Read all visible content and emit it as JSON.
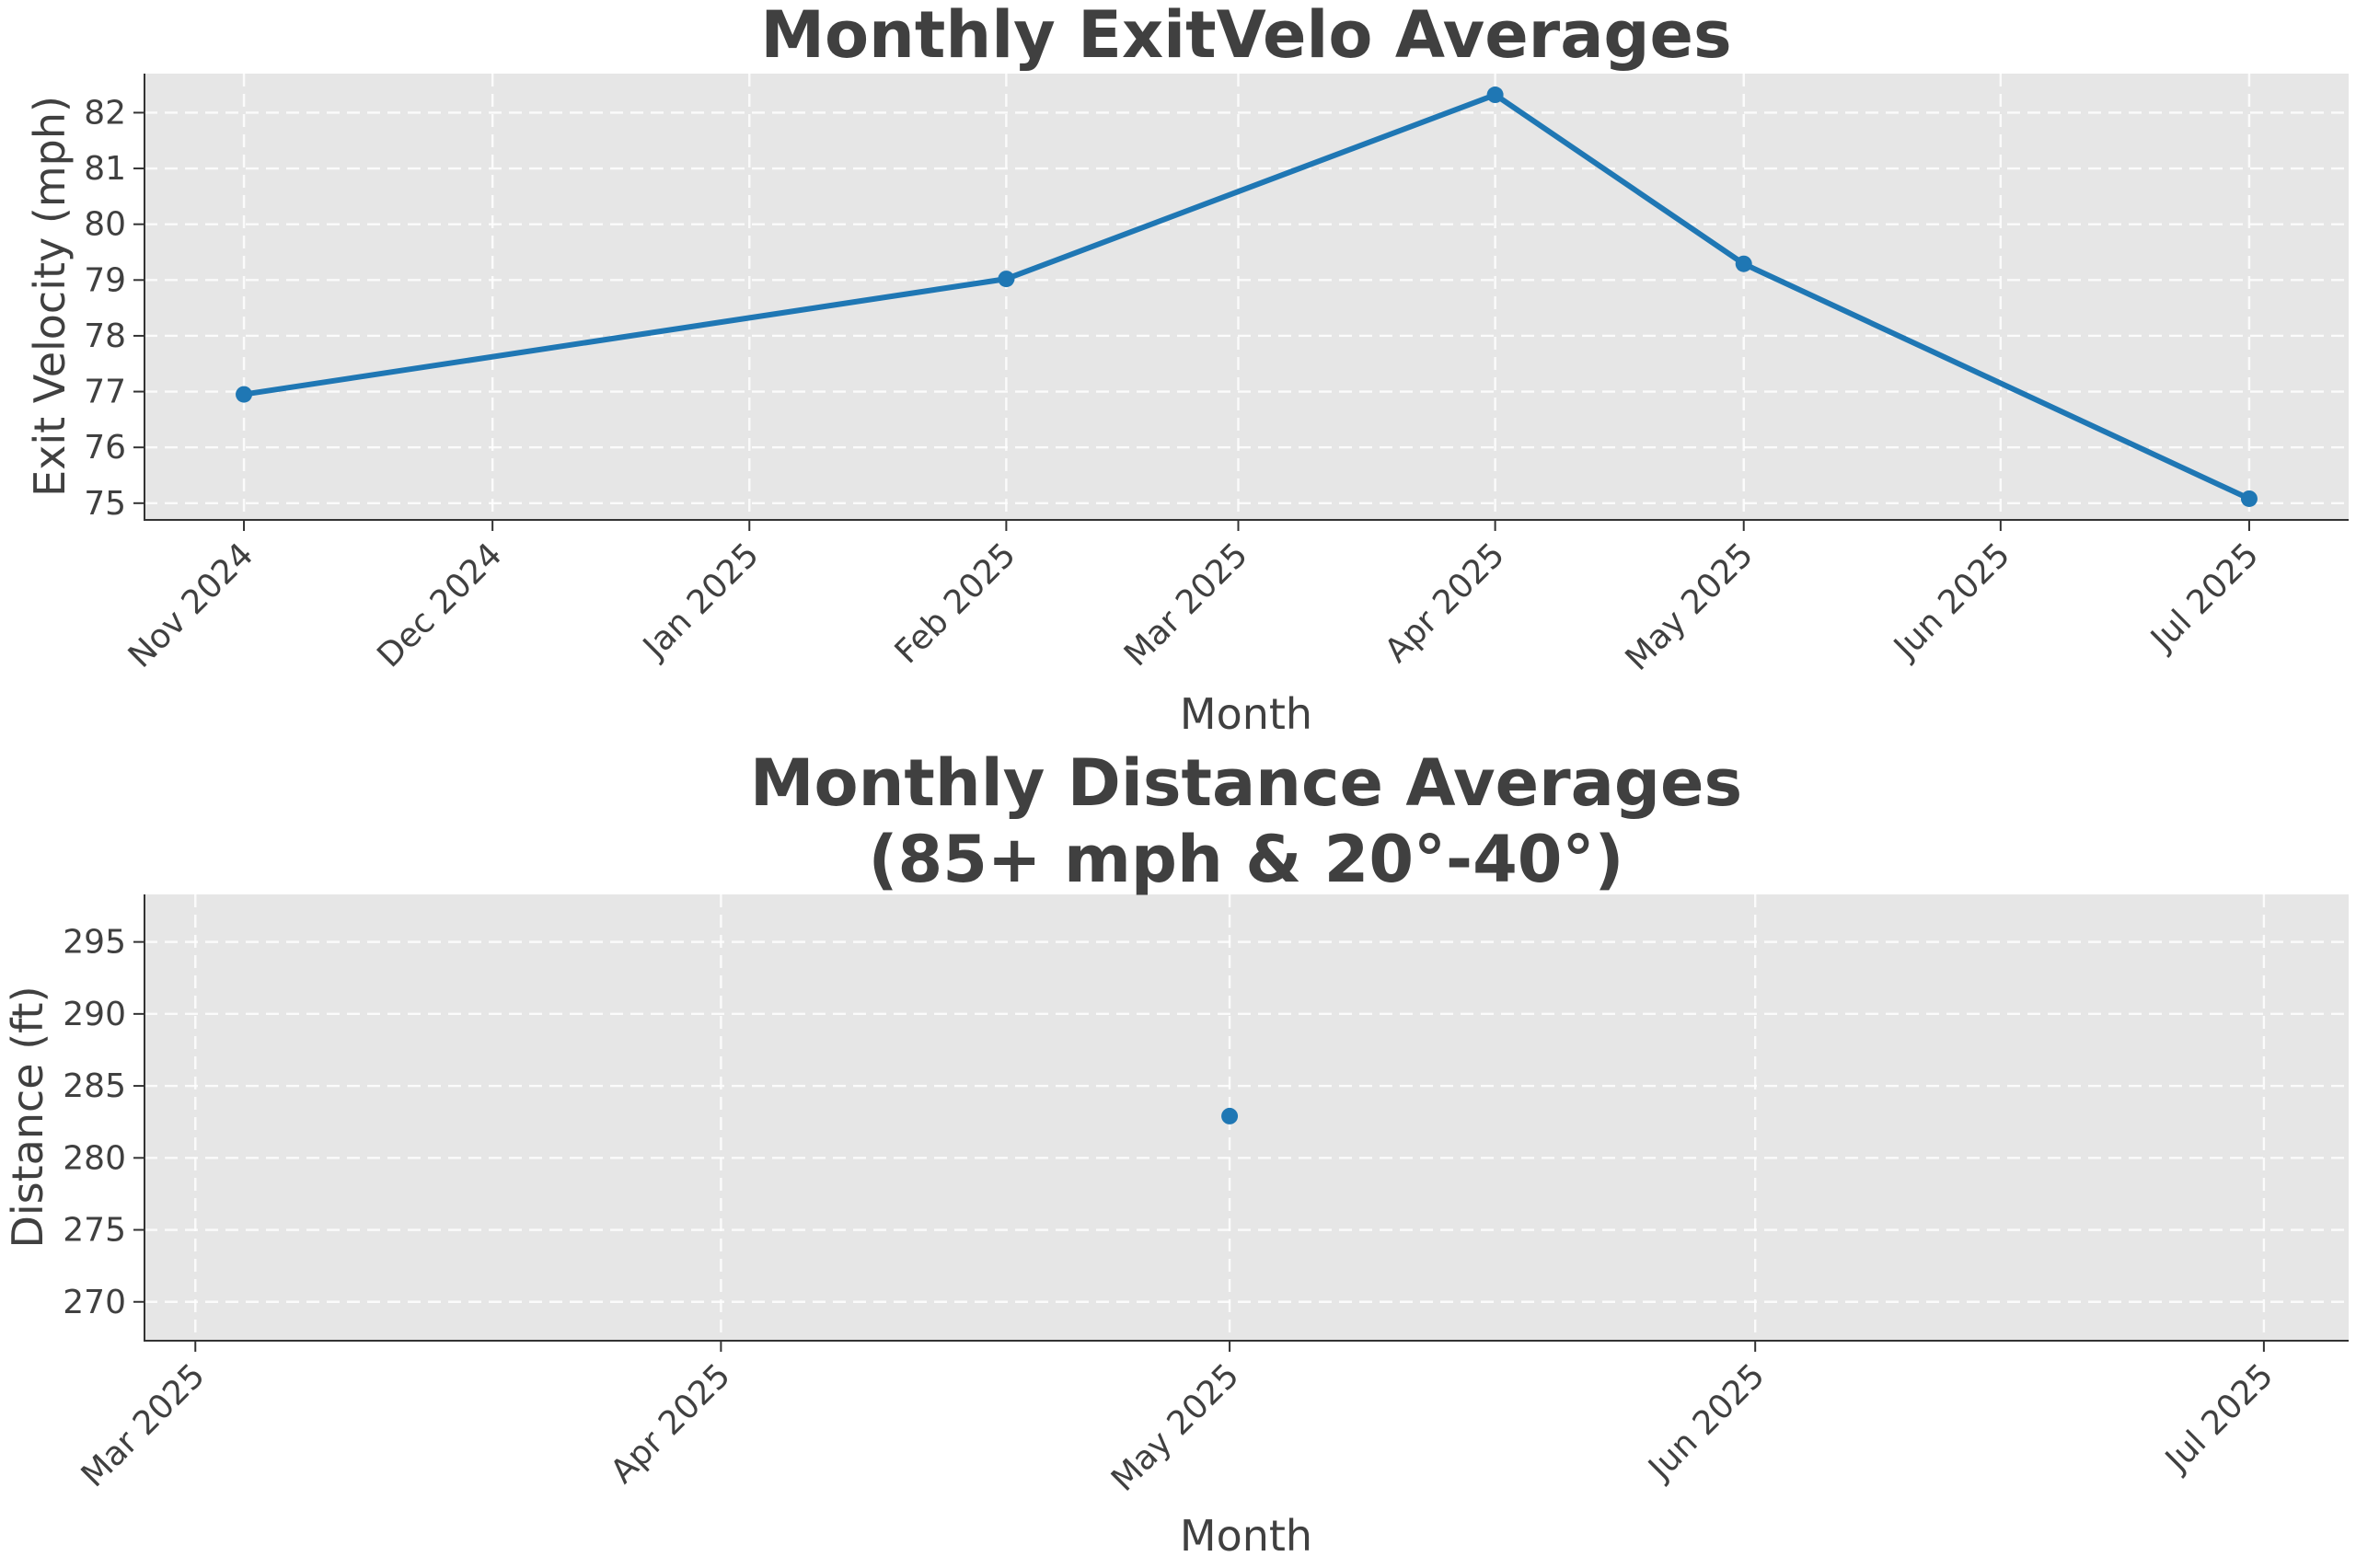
{
  "chart_data": [
    {
      "type": "line",
      "title": "Monthly ExitVelo Averages",
      "xlabel": "Month",
      "ylabel": "Exit Velocity (mph)",
      "x_ticks": [
        "2024-11-01",
        "2024-12-01",
        "2025-01-01",
        "2025-02-01",
        "2025-03-01",
        "2025-04-01",
        "2025-05-01",
        "2025-06-01",
        "2025-07-01"
      ],
      "x_tick_labels": [
        "Nov 2024",
        "Dec 2024",
        "Jan 2025",
        "Feb 2025",
        "Mar 2025",
        "Apr 2025",
        "May 2025",
        "Jun 2025",
        "Jul 2025"
      ],
      "y_ticks": [
        75,
        76,
        77,
        78,
        79,
        80,
        81,
        82
      ],
      "xlim": [
        "2024-10-20",
        "2025-07-13"
      ],
      "ylim": [
        74.7,
        82.7
      ],
      "grid": true,
      "color": "#1f77b4",
      "series": [
        {
          "x": [
            "2024-11-01",
            "2025-02-01",
            "2025-04-01",
            "2025-05-01",
            "2025-07-01"
          ],
          "y": [
            76.95,
            79.02,
            82.32,
            79.29,
            75.08
          ]
        }
      ]
    },
    {
      "type": "scatter",
      "title": "Monthly Distance Averages\n(85+ mph & 20°-40°)",
      "title_lines": [
        "Monthly Distance Averages",
        "(85+ mph & 20°-40°)"
      ],
      "xlabel": "Month",
      "ylabel": "Distance (ft)",
      "x_ticks": [
        "2025-03-01",
        "2025-04-01",
        "2025-05-01",
        "2025-06-01",
        "2025-07-01"
      ],
      "x_tick_labels": [
        "Mar 2025",
        "Apr 2025",
        "May 2025",
        "Jun 2025",
        "Jul 2025"
      ],
      "y_ticks": [
        270,
        275,
        280,
        285,
        290,
        295
      ],
      "xlim": [
        "2025-02-26",
        "2025-07-06"
      ],
      "ylim": [
        267.3,
        298.3
      ],
      "grid": true,
      "color": "#1f77b4",
      "series": [
        {
          "x": [
            "2025-05-01"
          ],
          "y": [
            282.9
          ]
        }
      ]
    }
  ]
}
